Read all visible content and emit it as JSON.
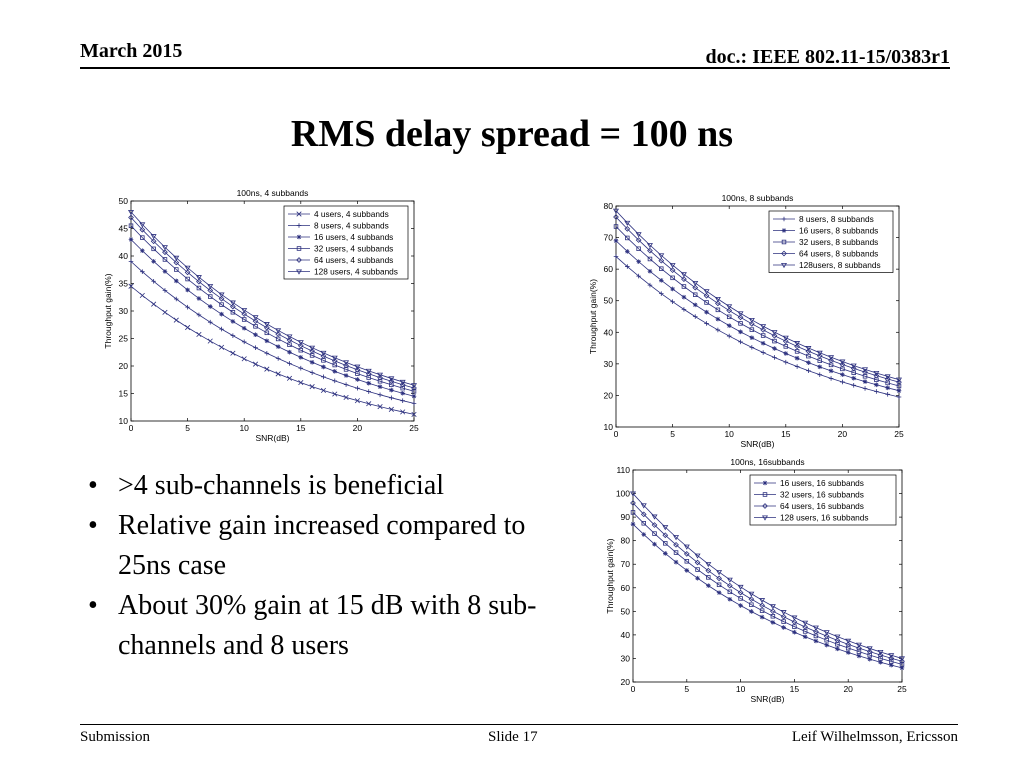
{
  "header": {
    "date": "March 2015",
    "doc": "doc.: IEEE 802.11-15/0383r1"
  },
  "slide_title": "RMS delay spread = 100 ns",
  "bullets": [
    ">4  sub-channels is beneficial",
    "Relative gain increased compared to 25ns case",
    "About 30% gain at 15 dB with 8 sub-channels and 8 users"
  ],
  "footer": {
    "left": "Submission",
    "center": "Slide 17",
    "right": "Leif Wilhelmsson, Ericsson"
  },
  "chart_data": [
    {
      "type": "line",
      "title": "100ns, 4 subbands",
      "xlabel": "SNR(dB)",
      "ylabel": "Throughput gain(%)",
      "xlim": [
        0,
        25
      ],
      "ylim": [
        10,
        50
      ],
      "xticks": [
        0,
        5,
        10,
        15,
        20,
        25
      ],
      "yticks": [
        10,
        15,
        20,
        25,
        30,
        35,
        40,
        45,
        50
      ],
      "grid": false,
      "legend": "top-right",
      "x": [
        0,
        1,
        2,
        3,
        4,
        5,
        6,
        7,
        8,
        9,
        10,
        11,
        12,
        13,
        14,
        15,
        16,
        17,
        18,
        19,
        20,
        21,
        22,
        23,
        24,
        25
      ],
      "series": [
        {
          "name": "4 users, 4 subbands",
          "marker": "x",
          "y0": 34.5,
          "y1": 11.2
        },
        {
          "name": "8 users, 4 subbands",
          "marker": "+",
          "y0": 39.0,
          "y1": 13.2
        },
        {
          "name": "16 users, 4 subbands",
          "marker": "*",
          "y0": 43.0,
          "y1": 14.5
        },
        {
          "name": "32 users, 4 subbands",
          "marker": "square",
          "y0": 45.5,
          "y1": 15.4
        },
        {
          "name": "64 users, 4 subbands",
          "marker": "diamond",
          "y0": 47.0,
          "y1": 16.0
        },
        {
          "name": "128 users, 4 subbands",
          "marker": "triangle-down",
          "y0": 48.0,
          "y1": 16.5
        }
      ]
    },
    {
      "type": "line",
      "title": "100ns, 8 subbands",
      "xlabel": "SNR(dB)",
      "ylabel": "Throughput gain(%)",
      "xlim": [
        0,
        25
      ],
      "ylim": [
        10,
        80
      ],
      "xticks": [
        0,
        5,
        10,
        15,
        20,
        25
      ],
      "yticks": [
        10,
        20,
        30,
        40,
        50,
        60,
        70,
        80
      ],
      "grid": false,
      "legend": "top-right",
      "x": [
        0,
        1,
        2,
        3,
        4,
        5,
        6,
        7,
        8,
        9,
        10,
        11,
        12,
        13,
        14,
        15,
        16,
        17,
        18,
        19,
        20,
        21,
        22,
        23,
        24,
        25
      ],
      "series": [
        {
          "name": "8 users, 8 subbands",
          "marker": "+",
          "y0": 64.0,
          "y1": 19.5
        },
        {
          "name": "16 users, 8 subbands",
          "marker": "*",
          "y0": 69.0,
          "y1": 21.5
        },
        {
          "name": "32 users, 8 subbands",
          "marker": "square",
          "y0": 73.5,
          "y1": 23.0
        },
        {
          "name": "64 users, 8 subbands",
          "marker": "diamond",
          "y0": 76.5,
          "y1": 24.2
        },
        {
          "name": "128users, 8 subbands",
          "marker": "triangle-down",
          "y0": 78.5,
          "y1": 25.0
        }
      ]
    },
    {
      "type": "line",
      "title": "100ns, 16subbands",
      "xlabel": "SNR(dB)",
      "ylabel": "Throughput gain(%)",
      "xlim": [
        0,
        25
      ],
      "ylim": [
        20,
        110
      ],
      "xticks": [
        0,
        5,
        10,
        15,
        20,
        25
      ],
      "yticks": [
        20,
        30,
        40,
        50,
        60,
        70,
        80,
        90,
        100,
        110
      ],
      "grid": false,
      "legend": "top-right",
      "x": [
        0,
        1,
        2,
        3,
        4,
        5,
        6,
        7,
        8,
        9,
        10,
        11,
        12,
        13,
        14,
        15,
        16,
        17,
        18,
        19,
        20,
        21,
        22,
        23,
        24,
        25
      ],
      "series": [
        {
          "name": "16 users, 16 subbands",
          "marker": "*",
          "y0": 87.0,
          "y1": 26.0
        },
        {
          "name": "32 users, 16 subbands",
          "marker": "square",
          "y0": 92.0,
          "y1": 27.5
        },
        {
          "name": "64 users, 16 subbands",
          "marker": "diamond",
          "y0": 96.0,
          "y1": 28.8
        },
        {
          "name": "128 users, 16 subbands",
          "marker": "triangle-down",
          "y0": 100.0,
          "y1": 30.0
        }
      ]
    }
  ]
}
